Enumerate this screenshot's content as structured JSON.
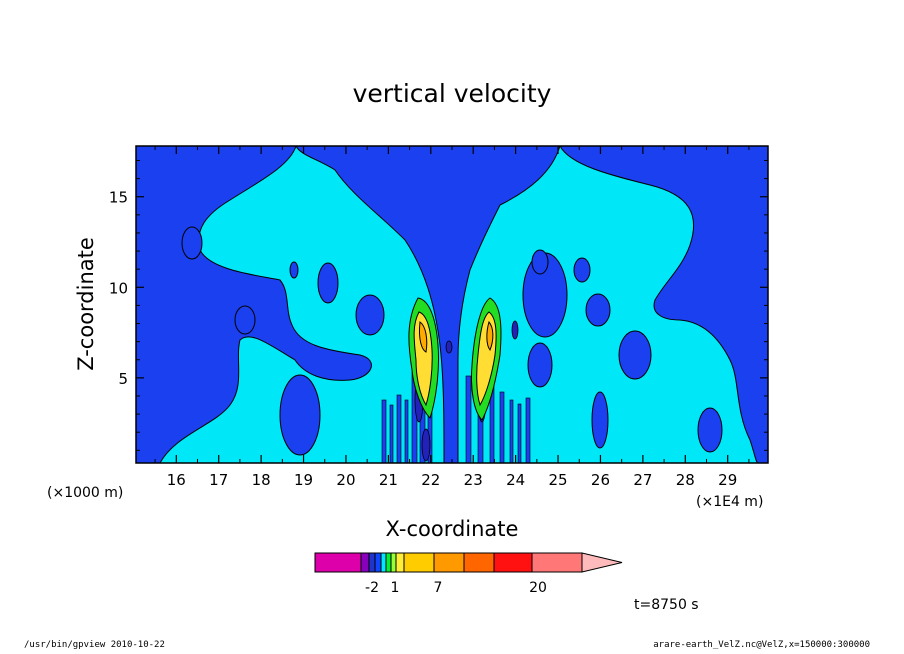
{
  "chart_data": {
    "type": "heatmap",
    "title": "vertical velocity",
    "xlabel": "X-coordinate",
    "ylabel": "Z-coordinate",
    "x_unit_note": "(×1E4 m)",
    "y_unit_note": "(×1000 m)",
    "xlim": [
      15.05,
      29.95
    ],
    "ylim": [
      0.3,
      17.8
    ],
    "x_ticks": [
      "16",
      "17",
      "18",
      "19",
      "20",
      "21",
      "22",
      "23",
      "24",
      "25",
      "26",
      "27",
      "28",
      "29"
    ],
    "y_ticks": [
      "5",
      "10",
      "15"
    ],
    "x_tick_values": [
      16,
      17,
      18,
      19,
      20,
      21,
      22,
      23,
      24,
      25,
      26,
      27,
      28,
      29
    ],
    "y_tick_values": [
      5,
      10,
      15
    ],
    "colorbar": {
      "colors": [
        "#dd00aa",
        "#8800bb",
        "#2233cc",
        "#1144ff",
        "#00e6ff",
        "#00ee33",
        "#99ff33",
        "#ffee33",
        "#ffcc00",
        "#ff9900",
        "#ff6600",
        "#ff1111",
        "#ff7777",
        "#ffbbbb"
      ],
      "tick_labels": [
        "-2",
        "1",
        "7",
        "20"
      ]
    },
    "time_label": "t=8750 s",
    "level_colors": {
      "background": "#00e8f8",
      "negative": "#1a40f0",
      "strong_negative": "#2222bb",
      "weak_positive": "#22dd22",
      "positive": "#ffdd33",
      "strong_positive": "#ffaa00"
    }
  },
  "footer": {
    "left": "/usr/bin/gpview   2010-10-22",
    "right": "arare-earth_VelZ.nc@VelZ,x=150000:300000"
  }
}
